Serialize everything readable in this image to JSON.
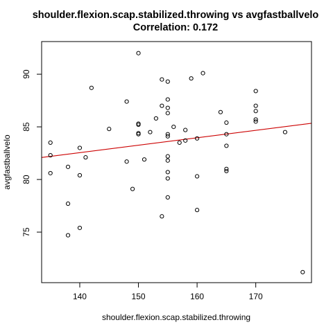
{
  "chart_data": {
    "type": "scatter",
    "title": "shoulder.flexion.scap.stabilized.throwing vs avgfastballvelo",
    "subtitle": "Correlation: 0.172",
    "xlabel": "shoulder.flexion.scap.stabilized.throwing",
    "ylabel": "avgfastballvelo",
    "xlim": [
      133.5,
      179.5
    ],
    "ylim": [
      70.2,
      93.1
    ],
    "x_ticks": [
      140,
      150,
      160,
      170
    ],
    "y_ticks": [
      75,
      80,
      85,
      90
    ],
    "grid": false,
    "point_style": "open-circle",
    "point_color": "#000000",
    "trend_line": {
      "slope": 0.0707,
      "intercept": 72.65,
      "color": "#cc0000"
    },
    "points": [
      {
        "x": 135,
        "y": 83.5
      },
      {
        "x": 135,
        "y": 82.3
      },
      {
        "x": 135,
        "y": 80.6
      },
      {
        "x": 138,
        "y": 81.2
      },
      {
        "x": 138,
        "y": 77.7
      },
      {
        "x": 138,
        "y": 74.7
      },
      {
        "x": 140,
        "y": 83.0
      },
      {
        "x": 140,
        "y": 80.4
      },
      {
        "x": 140,
        "y": 75.4
      },
      {
        "x": 141,
        "y": 82.1
      },
      {
        "x": 142,
        "y": 88.7
      },
      {
        "x": 145,
        "y": 84.8
      },
      {
        "x": 148,
        "y": 87.4
      },
      {
        "x": 148,
        "y": 81.7
      },
      {
        "x": 149,
        "y": 79.1
      },
      {
        "x": 150,
        "y": 92.0
      },
      {
        "x": 150,
        "y": 85.3
      },
      {
        "x": 150,
        "y": 85.2
      },
      {
        "x": 150,
        "y": 84.4
      },
      {
        "x": 150,
        "y": 84.3
      },
      {
        "x": 151,
        "y": 81.9
      },
      {
        "x": 152,
        "y": 84.5
      },
      {
        "x": 153,
        "y": 85.8
      },
      {
        "x": 154,
        "y": 89.5
      },
      {
        "x": 154,
        "y": 87.0
      },
      {
        "x": 154,
        "y": 76.5
      },
      {
        "x": 155,
        "y": 89.3
      },
      {
        "x": 155,
        "y": 87.6
      },
      {
        "x": 155,
        "y": 86.8
      },
      {
        "x": 155,
        "y": 86.3
      },
      {
        "x": 155,
        "y": 84.3
      },
      {
        "x": 155,
        "y": 84.1
      },
      {
        "x": 155,
        "y": 82.2
      },
      {
        "x": 155,
        "y": 81.8
      },
      {
        "x": 155,
        "y": 80.7
      },
      {
        "x": 155,
        "y": 80.1
      },
      {
        "x": 155,
        "y": 78.3
      },
      {
        "x": 156,
        "y": 85.0
      },
      {
        "x": 157,
        "y": 83.5
      },
      {
        "x": 158,
        "y": 84.7
      },
      {
        "x": 158,
        "y": 83.7
      },
      {
        "x": 159,
        "y": 89.6
      },
      {
        "x": 160,
        "y": 83.9
      },
      {
        "x": 160,
        "y": 80.3
      },
      {
        "x": 160,
        "y": 77.1
      },
      {
        "x": 161,
        "y": 90.1
      },
      {
        "x": 164,
        "y": 86.4
      },
      {
        "x": 165,
        "y": 85.4
      },
      {
        "x": 165,
        "y": 84.3
      },
      {
        "x": 165,
        "y": 83.2
      },
      {
        "x": 165,
        "y": 81.0
      },
      {
        "x": 165,
        "y": 80.8
      },
      {
        "x": 170,
        "y": 88.4
      },
      {
        "x": 170,
        "y": 87.0
      },
      {
        "x": 170,
        "y": 86.5
      },
      {
        "x": 170,
        "y": 85.7
      },
      {
        "x": 170,
        "y": 85.5
      },
      {
        "x": 175,
        "y": 84.5
      },
      {
        "x": 178,
        "y": 71.2
      }
    ]
  }
}
